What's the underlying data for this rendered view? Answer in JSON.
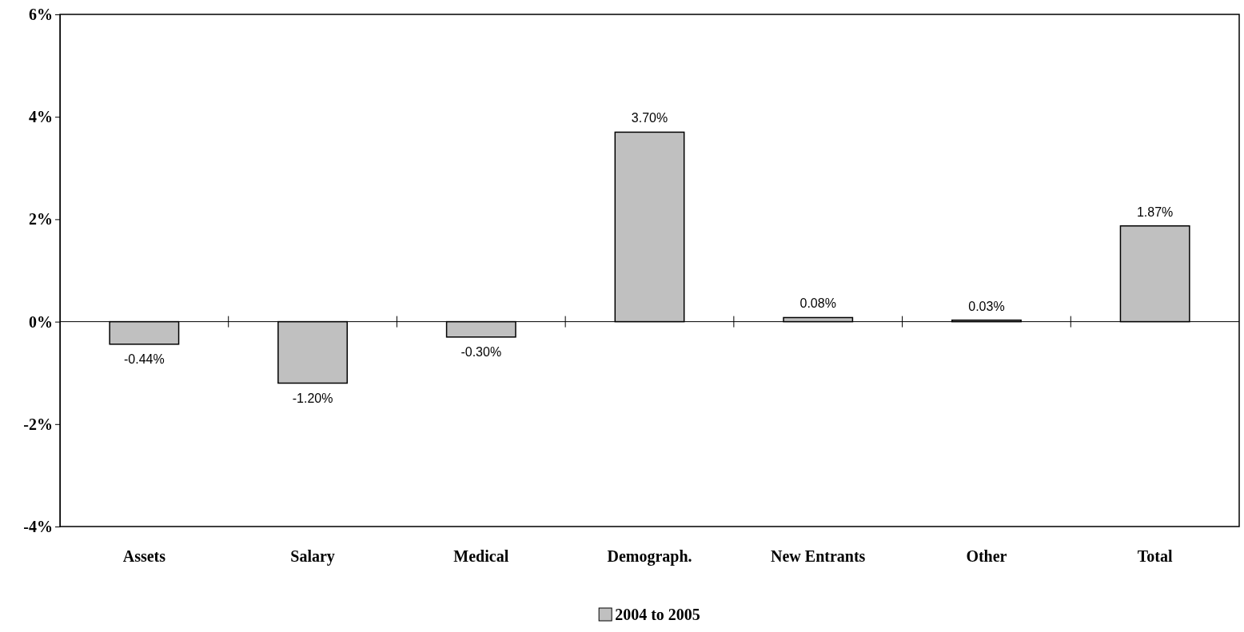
{
  "chart_data": {
    "type": "bar",
    "categories": [
      "Assets",
      "Salary",
      "Medical",
      "Demograph.",
      "New Entrants",
      "Other",
      "Total"
    ],
    "series": [
      {
        "name": "2004 to 2005",
        "color": "#c0c0c0",
        "values": [
          -0.44,
          -1.2,
          -0.3,
          3.7,
          0.08,
          0.03,
          1.87
        ],
        "value_labels": [
          "-0.44%",
          "-1.20%",
          "-0.30%",
          "3.70%",
          "0.08%",
          "0.03%",
          "1.87%"
        ]
      }
    ],
    "ylim": [
      -4,
      6
    ],
    "yticks": [
      {
        "value": -4,
        "label": "-4%"
      },
      {
        "value": -2,
        "label": "-2%"
      },
      {
        "value": 0,
        "label": "0%"
      },
      {
        "value": 2,
        "label": "2%"
      },
      {
        "value": 4,
        "label": "4%"
      },
      {
        "value": 6,
        "label": "6%"
      }
    ],
    "legend": "bottom"
  }
}
